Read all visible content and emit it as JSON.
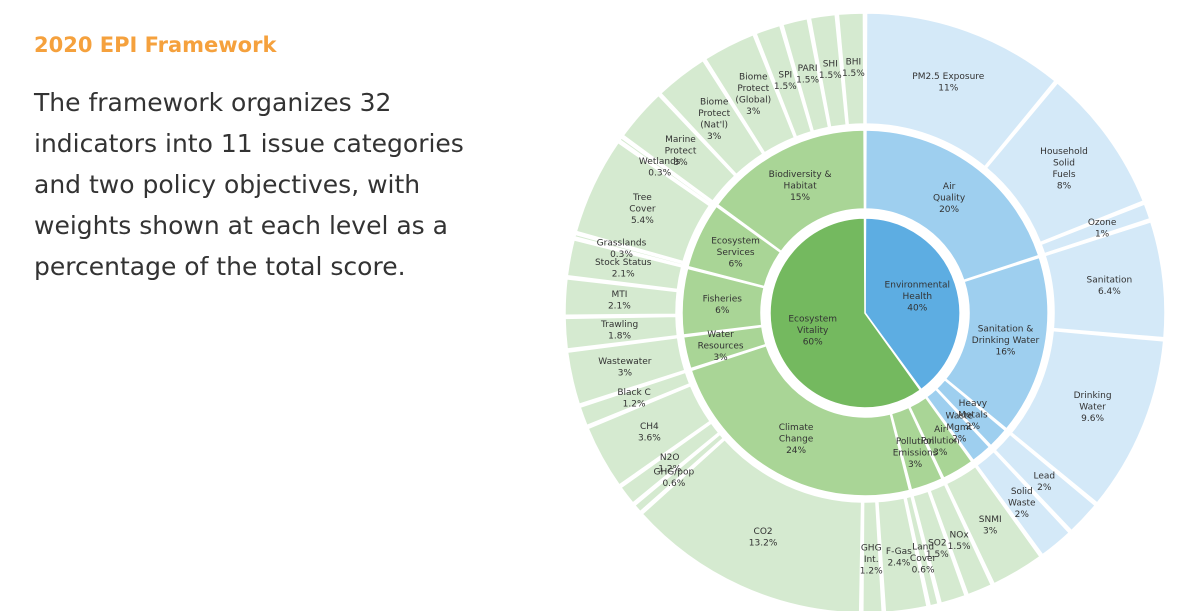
{
  "header": {
    "title": "2020 EPI Framework",
    "description": "The framework organizes 32 indicators into 11 issue categories and two policy objectives, with weights shown at each level as a percentage of the total score."
  },
  "colors": {
    "eh_inner": "#5dade2",
    "eh_mid": "#9ecfef",
    "eh_outer": "#d4e9f8",
    "ev_inner": "#74b95f",
    "ev_mid": "#a9d596",
    "ev_outer": "#d5ead0",
    "separator": "#ffffff"
  },
  "chart_data": {
    "type": "sunburst",
    "objectives": [
      {
        "name": "Environmental Health",
        "weight": "40%",
        "value": 40,
        "palette": "eh",
        "lines": [
          "Environmental",
          "Health",
          "40%"
        ]
      },
      {
        "name": "Ecosystem Vitality",
        "weight": "60%",
        "value": 60,
        "palette": "ev",
        "lines": [
          "Ecosystem",
          "Vitality",
          "60%"
        ]
      }
    ],
    "categories": [
      {
        "lines": [
          "Air",
          "Quality",
          "20%"
        ],
        "value": 20,
        "palette": "eh"
      },
      {
        "lines": [
          "Sanitation &",
          "Drinking Water",
          "16%"
        ],
        "value": 16,
        "palette": "eh"
      },
      {
        "lines": [
          "Heavy",
          "Metals",
          "2%"
        ],
        "value": 2,
        "palette": "eh"
      },
      {
        "lines": [
          "Waste",
          "Mgmt",
          "2%"
        ],
        "value": 2,
        "palette": "eh"
      },
      {
        "lines": [
          "Air",
          "Pollution",
          "3%"
        ],
        "value": 3,
        "palette": "ev"
      },
      {
        "lines": [
          "Pollution",
          "Emissions",
          "3%"
        ],
        "value": 3,
        "palette": "ev"
      },
      {
        "lines": [
          "Climate",
          "Change",
          "24%"
        ],
        "value": 24,
        "palette": "ev"
      },
      {
        "lines": [
          "Water",
          "Resources",
          "3%"
        ],
        "value": 3,
        "palette": "ev"
      },
      {
        "lines": [
          "Fisheries",
          "6%"
        ],
        "value": 6,
        "palette": "ev"
      },
      {
        "lines": [
          "Ecosystem",
          "Services",
          "6%"
        ],
        "value": 6,
        "palette": "ev"
      },
      {
        "lines": [
          "Biodiversity &",
          "Habitat",
          "15%"
        ],
        "value": 15,
        "palette": "ev"
      }
    ],
    "indicators": [
      {
        "lines": [
          "PM2.5 Exposure",
          "11%"
        ],
        "value": 11,
        "palette": "eh"
      },
      {
        "lines": [
          "Household",
          "Solid",
          "Fuels",
          "8%"
        ],
        "value": 8,
        "palette": "eh"
      },
      {
        "lines": [
          "Ozone",
          "1%"
        ],
        "value": 1,
        "palette": "eh"
      },
      {
        "lines": [
          "Sanitation",
          "6.4%"
        ],
        "value": 6.4,
        "palette": "eh"
      },
      {
        "lines": [
          "Drinking",
          "Water",
          "9.6%"
        ],
        "value": 9.6,
        "palette": "eh"
      },
      {
        "lines": [
          "Lead",
          "2%"
        ],
        "value": 2,
        "palette": "eh"
      },
      {
        "lines": [
          "Solid",
          "Waste",
          "2%"
        ],
        "value": 2,
        "palette": "eh"
      },
      {
        "lines": [
          "SNMI",
          "3%"
        ],
        "value": 3,
        "palette": "ev"
      },
      {
        "lines": [
          "NOx",
          "1.5%"
        ],
        "value": 1.5,
        "palette": "ev"
      },
      {
        "lines": [
          "SO2",
          "1.5%"
        ],
        "value": 1.5,
        "palette": "ev"
      },
      {
        "lines": [
          "Land",
          "Cover",
          "0.6%"
        ],
        "value": 0.6,
        "palette": "ev"
      },
      {
        "lines": [
          "F-Gas",
          "2.4%"
        ],
        "value": 2.4,
        "palette": "ev"
      },
      {
        "lines": [
          "GHG",
          "Int.",
          "1.2%"
        ],
        "value": 1.2,
        "palette": "ev"
      },
      {
        "lines": [
          "CO2",
          "13.2%"
        ],
        "value": 13.2,
        "palette": "ev"
      },
      {
        "lines": [
          "GHG/pop",
          "0.6%"
        ],
        "value": 0.6,
        "palette": "ev"
      },
      {
        "lines": [
          "N2O",
          "1.2%"
        ],
        "value": 1.2,
        "palette": "ev"
      },
      {
        "lines": [
          "CH4",
          "3.6%"
        ],
        "value": 3.6,
        "palette": "ev"
      },
      {
        "lines": [
          "Black C",
          "1.2%"
        ],
        "value": 1.2,
        "palette": "ev"
      },
      {
        "lines": [
          "Wastewater",
          "3%"
        ],
        "value": 3,
        "palette": "ev"
      },
      {
        "lines": [
          "Trawling",
          "1.8%"
        ],
        "value": 1.8,
        "palette": "ev"
      },
      {
        "lines": [
          "MTI",
          "2.1%"
        ],
        "value": 2.1,
        "palette": "ev"
      },
      {
        "lines": [
          "Stock Status",
          "2.1%"
        ],
        "value": 2.1,
        "palette": "ev"
      },
      {
        "lines": [
          "Grasslands",
          "0.3%"
        ],
        "value": 0.3,
        "palette": "ev"
      },
      {
        "lines": [
          "Tree",
          "Cover",
          "5.4%"
        ],
        "value": 5.4,
        "palette": "ev"
      },
      {
        "lines": [
          "Wetlands",
          "0.3%"
        ],
        "value": 0.3,
        "palette": "ev"
      },
      {
        "lines": [
          "Marine",
          "Protect",
          "3%"
        ],
        "value": 3,
        "palette": "ev"
      },
      {
        "lines": [
          "Biome",
          "Protect",
          "(Nat'l)",
          "3%"
        ],
        "value": 3,
        "palette": "ev"
      },
      {
        "lines": [
          "Biome",
          "Protect",
          "(Global)",
          "3%"
        ],
        "value": 3,
        "palette": "ev"
      },
      {
        "lines": [
          "SPI",
          "1.5%"
        ],
        "value": 1.5,
        "palette": "ev"
      },
      {
        "lines": [
          "PARI",
          "1.5%"
        ],
        "value": 1.5,
        "palette": "ev"
      },
      {
        "lines": [
          "SHI",
          "1.5%"
        ],
        "value": 1.5,
        "palette": "ev"
      },
      {
        "lines": [
          "BHI",
          "1.5%"
        ],
        "value": 1.5,
        "palette": "ev"
      }
    ]
  }
}
